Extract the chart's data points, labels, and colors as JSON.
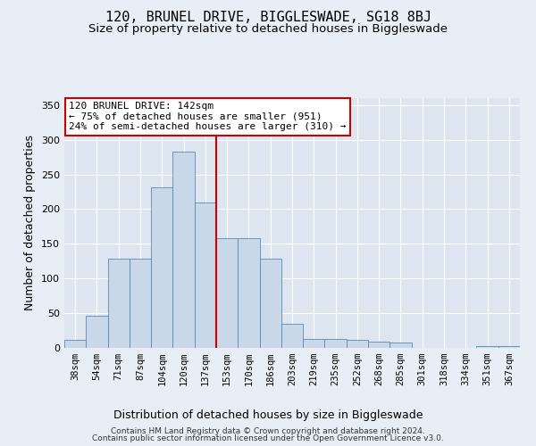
{
  "title": "120, BRUNEL DRIVE, BIGGLESWADE, SG18 8BJ",
  "subtitle": "Size of property relative to detached houses in Biggleswade",
  "xlabel": "Distribution of detached houses by size in Biggleswade",
  "ylabel": "Number of detached properties",
  "bar_color": "#c8d8e8",
  "bar_edge_color": "#5a8ab0",
  "bg_color": "#dde6f0",
  "grid_color": "#ffffff",
  "bins": [
    "38sqm",
    "54sqm",
    "71sqm",
    "87sqm",
    "104sqm",
    "120sqm",
    "137sqm",
    "153sqm",
    "170sqm",
    "186sqm",
    "203sqm",
    "219sqm",
    "235sqm",
    "252sqm",
    "268sqm",
    "285sqm",
    "301sqm",
    "318sqm",
    "334sqm",
    "351sqm",
    "367sqm"
  ],
  "values": [
    12,
    46,
    128,
    128,
    232,
    283,
    210,
    158,
    158,
    128,
    35,
    13,
    13,
    11,
    9,
    8,
    0,
    0,
    0,
    3,
    3
  ],
  "vline_bin_index": 6.5,
  "vline_color": "#cc0000",
  "annotation_text": "120 BRUNEL DRIVE: 142sqm\n← 75% of detached houses are smaller (951)\n24% of semi-detached houses are larger (310) →",
  "annotation_box_color": "#ffffff",
  "annotation_box_edge": "#cc0000",
  "ylim": [
    0,
    360
  ],
  "yticks": [
    0,
    50,
    100,
    150,
    200,
    250,
    300,
    350
  ],
  "footer1": "Contains HM Land Registry data © Crown copyright and database right 2024.",
  "footer2": "Contains public sector information licensed under the Open Government Licence v3.0.",
  "title_fontsize": 11,
  "subtitle_fontsize": 9.5,
  "tick_fontsize": 7.5,
  "ylabel_fontsize": 9,
  "xlabel_fontsize": 9
}
